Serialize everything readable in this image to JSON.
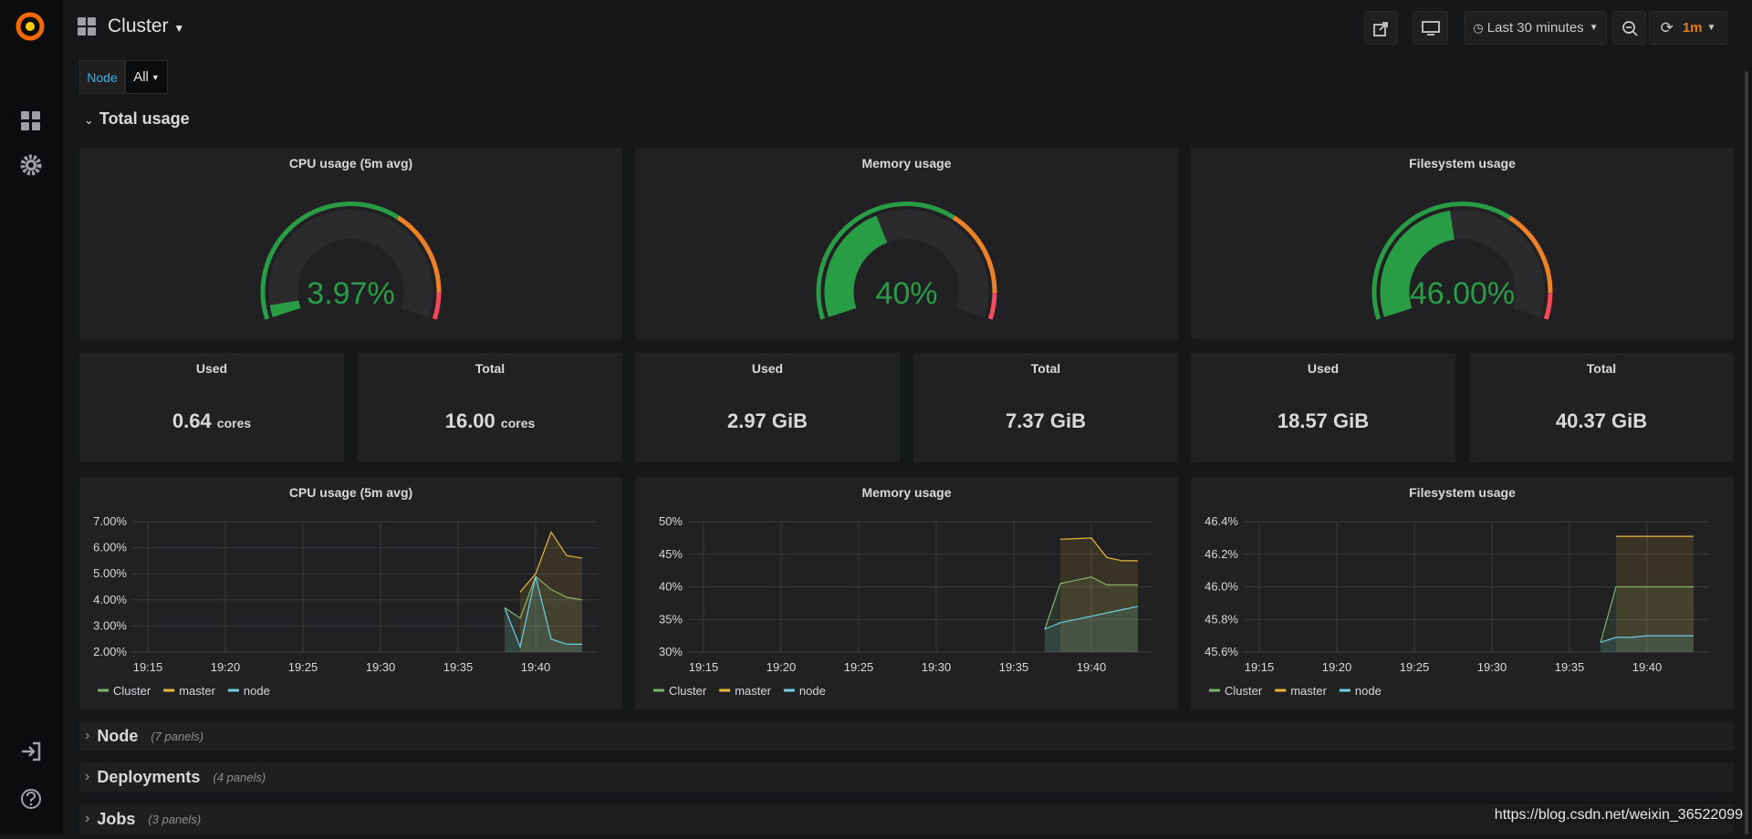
{
  "header": {
    "title": "Cluster",
    "time_range": "Last 30 minutes",
    "refresh": "1m"
  },
  "variables": [
    {
      "label": "Node",
      "value": "All"
    }
  ],
  "rows": [
    {
      "title": "Total usage"
    },
    {
      "title": "Node",
      "note": "(7 panels)"
    },
    {
      "title": "Deployments",
      "note": "(4 panels)"
    },
    {
      "title": "Jobs",
      "note": "(3 panels)"
    }
  ],
  "gauge_settings": {
    "range": [
      0,
      100
    ],
    "thresholds": [
      {
        "from": 0,
        "color": "#299c46"
      },
      {
        "from": 65,
        "color": "#ed8128"
      },
      {
        "from": 92,
        "color": "#f2495c"
      }
    ]
  },
  "gauges": [
    {
      "title": "CPU usage (5m avg)",
      "value": 3.97,
      "value_label": "3.97%"
    },
    {
      "title": "Memory usage",
      "value": 40,
      "value_label": "40%"
    },
    {
      "title": "Filesystem usage",
      "value": 46.0,
      "value_label": "46.00%"
    }
  ],
  "stats": [
    {
      "title": "Used",
      "value": "0.64",
      "unit": "cores"
    },
    {
      "title": "Total",
      "value": "16.00",
      "unit": "cores"
    },
    {
      "title": "Used",
      "value": "2.97 GiB"
    },
    {
      "title": "Total",
      "value": "7.37 GiB"
    },
    {
      "title": "Used",
      "value": "18.57 GiB"
    },
    {
      "title": "Total",
      "value": "40.37 GiB"
    }
  ],
  "chart_data": [
    {
      "type": "line",
      "title": "CPU usage (5m avg)",
      "x": [
        "19:37",
        "19:38",
        "19:39",
        "19:40",
        "19:41",
        "19:42",
        "19:43"
      ],
      "xlim": [
        "19:14",
        "19:44"
      ],
      "xticks": [
        "19:15",
        "19:20",
        "19:25",
        "19:30",
        "19:35",
        "19:40"
      ],
      "ylim": [
        2,
        7
      ],
      "yticks": [
        {
          "value": 2,
          "label": "2.00%"
        },
        {
          "value": 3,
          "label": "3.00%"
        },
        {
          "value": 4,
          "label": "4.00%"
        },
        {
          "value": 5,
          "label": "5.00%"
        },
        {
          "value": 6,
          "label": "6.00%"
        },
        {
          "value": 7,
          "label": "7.00%"
        }
      ],
      "grid": true,
      "legend": "bottom",
      "series": [
        {
          "name": "Cluster",
          "color": "#7eb26d",
          "values": [
            null,
            3.7,
            3.3,
            4.9,
            4.4,
            4.1,
            4.0
          ]
        },
        {
          "name": "master",
          "color": "#eab839",
          "values": [
            null,
            null,
            4.3,
            5.0,
            6.6,
            5.7,
            5.6
          ]
        },
        {
          "name": "node",
          "color": "#6ed0e0",
          "values": [
            null,
            3.7,
            2.2,
            4.9,
            2.5,
            2.3,
            2.3
          ]
        }
      ]
    },
    {
      "type": "line",
      "title": "Memory usage",
      "x": [
        "19:37",
        "19:38",
        "19:39",
        "19:40",
        "19:41",
        "19:42",
        "19:43"
      ],
      "xlim": [
        "19:14",
        "19:44"
      ],
      "xticks": [
        "19:15",
        "19:20",
        "19:25",
        "19:30",
        "19:35",
        "19:40"
      ],
      "ylim": [
        30,
        50
      ],
      "yticks": [
        {
          "value": 30,
          "label": "30%"
        },
        {
          "value": 35,
          "label": "35%"
        },
        {
          "value": 40,
          "label": "40%"
        },
        {
          "value": 45,
          "label": "45%"
        },
        {
          "value": 50,
          "label": "50%"
        }
      ],
      "grid": true,
      "legend": "bottom",
      "series": [
        {
          "name": "Cluster",
          "color": "#7eb26d",
          "values": [
            33.5,
            40.5,
            41.0,
            41.5,
            40.3,
            40.3,
            40.3
          ]
        },
        {
          "name": "master",
          "color": "#eab839",
          "values": [
            null,
            47.3,
            47.4,
            47.5,
            44.5,
            44.0,
            44.0
          ]
        },
        {
          "name": "node",
          "color": "#6ed0e0",
          "values": [
            33.5,
            34.5,
            35.0,
            35.5,
            36.0,
            36.5,
            37.0
          ]
        }
      ]
    },
    {
      "type": "line",
      "title": "Filesystem usage",
      "x": [
        "19:37",
        "19:38",
        "19:39",
        "19:40",
        "19:41",
        "19:42",
        "19:43"
      ],
      "xlim": [
        "19:14",
        "19:44"
      ],
      "xticks": [
        "19:15",
        "19:20",
        "19:25",
        "19:30",
        "19:35",
        "19:40"
      ],
      "ylim": [
        45.6,
        46.4
      ],
      "yticks": [
        {
          "value": 45.6,
          "label": "45.6%"
        },
        {
          "value": 45.8,
          "label": "45.8%"
        },
        {
          "value": 46.0,
          "label": "46.0%"
        },
        {
          "value": 46.2,
          "label": "46.2%"
        },
        {
          "value": 46.4,
          "label": "46.4%"
        }
      ],
      "grid": true,
      "legend": "bottom",
      "series": [
        {
          "name": "Cluster",
          "color": "#7eb26d",
          "values": [
            45.66,
            46.0,
            46.0,
            46.0,
            46.0,
            46.0,
            46.0
          ]
        },
        {
          "name": "master",
          "color": "#eab839",
          "values": [
            null,
            46.31,
            46.31,
            46.31,
            46.31,
            46.31,
            46.31
          ]
        },
        {
          "name": "node",
          "color": "#6ed0e0",
          "values": [
            45.66,
            45.69,
            45.69,
            45.7,
            45.7,
            45.7,
            45.7
          ]
        }
      ]
    }
  ],
  "watermark": "https://blog.csdn.net/weixin_36522099"
}
